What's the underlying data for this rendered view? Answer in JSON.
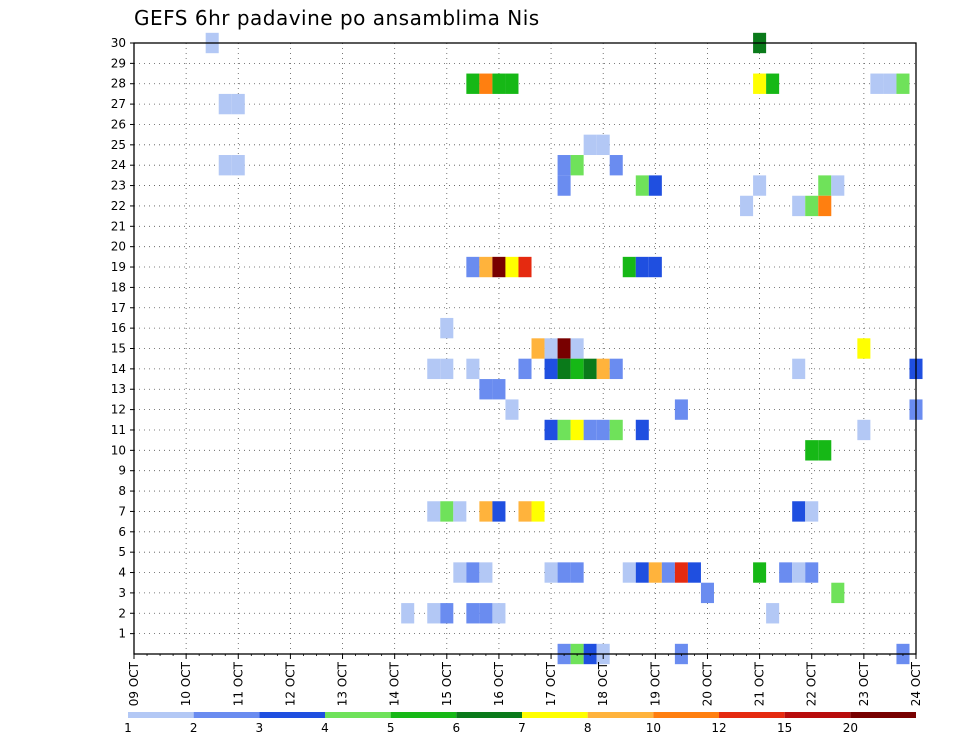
{
  "chart_data": {
    "type": "heatmap",
    "title": "GEFS 6hr padavine po ansamblima Nis",
    "xlabel": "",
    "ylabel": "",
    "x_range_days": [
      0,
      15
    ],
    "y_range": [
      0,
      30
    ],
    "y_ticks": [
      1,
      2,
      3,
      4,
      5,
      6,
      7,
      8,
      9,
      10,
      11,
      12,
      13,
      14,
      15,
      16,
      17,
      18,
      19,
      20,
      21,
      22,
      23,
      24,
      25,
      26,
      27,
      28,
      29,
      30
    ],
    "x_tick_labels": [
      "09 OCT",
      "10 OCT",
      "11 OCT",
      "12 OCT",
      "13 OCT",
      "14 OCT",
      "15 OCT",
      "16 OCT",
      "17 OCT",
      "18 OCT",
      "19 OCT",
      "20 OCT",
      "21 OCT",
      "22 OCT",
      "23 OCT",
      "24 OCT"
    ],
    "grid": true,
    "colorbar": {
      "labels": [
        "1",
        "2",
        "3",
        "4",
        "5",
        "6",
        "7",
        "8",
        "10",
        "12",
        "15",
        "20"
      ],
      "colors": [
        "#b3c8f5",
        "#6a8cf0",
        "#1f4fe0",
        "#6fe25a",
        "#16b816",
        "#0a7a1a",
        "#ffff00",
        "#ffb33c",
        "#ff7f10",
        "#e52a10",
        "#b80c0c",
        "#780000"
      ]
    },
    "cells": [
      {
        "member": 30,
        "day": 1.5,
        "c": 0
      },
      {
        "member": 30,
        "day": 12.0,
        "c": 5
      },
      {
        "member": 28,
        "day": 6.5,
        "c": 4
      },
      {
        "member": 28,
        "day": 6.75,
        "c": 8
      },
      {
        "member": 28,
        "day": 7.0,
        "c": 4
      },
      {
        "member": 28,
        "day": 7.25,
        "c": 4
      },
      {
        "member": 28,
        "day": 12.0,
        "c": 6
      },
      {
        "member": 28,
        "day": 12.25,
        "c": 4
      },
      {
        "member": 28,
        "day": 14.25,
        "c": 0
      },
      {
        "member": 28,
        "day": 14.5,
        "c": 0
      },
      {
        "member": 28,
        "day": 14.75,
        "c": 3
      },
      {
        "member": 27,
        "day": 1.75,
        "c": 0
      },
      {
        "member": 27,
        "day": 2.0,
        "c": 0
      },
      {
        "member": 25,
        "day": 8.75,
        "c": 0
      },
      {
        "member": 25,
        "day": 9.0,
        "c": 0
      },
      {
        "member": 24,
        "day": 1.75,
        "c": 0
      },
      {
        "member": 24,
        "day": 2.0,
        "c": 0
      },
      {
        "member": 24,
        "day": 8.25,
        "c": 1
      },
      {
        "member": 24,
        "day": 8.5,
        "c": 3
      },
      {
        "member": 24,
        "day": 9.25,
        "c": 1
      },
      {
        "member": 23,
        "day": 8.25,
        "c": 1
      },
      {
        "member": 23,
        "day": 9.75,
        "c": 3
      },
      {
        "member": 23,
        "day": 10.0,
        "c": 2
      },
      {
        "member": 23,
        "day": 12.0,
        "c": 0
      },
      {
        "member": 23,
        "day": 13.25,
        "c": 3
      },
      {
        "member": 23,
        "day": 13.5,
        "c": 0
      },
      {
        "member": 22,
        "day": 11.75,
        "c": 0
      },
      {
        "member": 22,
        "day": 12.75,
        "c": 0
      },
      {
        "member": 22,
        "day": 13.0,
        "c": 3
      },
      {
        "member": 22,
        "day": 13.25,
        "c": 8
      },
      {
        "member": 19,
        "day": 6.5,
        "c": 1
      },
      {
        "member": 19,
        "day": 6.75,
        "c": 7
      },
      {
        "member": 19,
        "day": 7.0,
        "c": 11
      },
      {
        "member": 19,
        "day": 7.25,
        "c": 6
      },
      {
        "member": 19,
        "day": 7.5,
        "c": 9
      },
      {
        "member": 19,
        "day": 9.5,
        "c": 4
      },
      {
        "member": 19,
        "day": 9.75,
        "c": 2
      },
      {
        "member": 19,
        "day": 10.0,
        "c": 2
      },
      {
        "member": 16,
        "day": 6.0,
        "c": 0
      },
      {
        "member": 15,
        "day": 7.75,
        "c": 7
      },
      {
        "member": 15,
        "day": 8.0,
        "c": 0
      },
      {
        "member": 15,
        "day": 8.25,
        "c": 11
      },
      {
        "member": 15,
        "day": 8.5,
        "c": 0
      },
      {
        "member": 15,
        "day": 14.0,
        "c": 6
      },
      {
        "member": 14,
        "day": 5.75,
        "c": 0
      },
      {
        "member": 14,
        "day": 6.0,
        "c": 0
      },
      {
        "member": 14,
        "day": 6.5,
        "c": 0
      },
      {
        "member": 14,
        "day": 7.5,
        "c": 1
      },
      {
        "member": 14,
        "day": 8.0,
        "c": 2
      },
      {
        "member": 14,
        "day": 8.25,
        "c": 5
      },
      {
        "member": 14,
        "day": 8.5,
        "c": 4
      },
      {
        "member": 14,
        "day": 8.75,
        "c": 5
      },
      {
        "member": 14,
        "day": 9.0,
        "c": 7
      },
      {
        "member": 14,
        "day": 9.25,
        "c": 1
      },
      {
        "member": 14,
        "day": 12.75,
        "c": 0
      },
      {
        "member": 14,
        "day": 15.0,
        "c": 2
      },
      {
        "member": 13,
        "day": 6.75,
        "c": 1
      },
      {
        "member": 13,
        "day": 7.0,
        "c": 1
      },
      {
        "member": 12,
        "day": 7.25,
        "c": 0
      },
      {
        "member": 12,
        "day": 10.5,
        "c": 1
      },
      {
        "member": 12,
        "day": 15.0,
        "c": 1
      },
      {
        "member": 11,
        "day": 8.0,
        "c": 2
      },
      {
        "member": 11,
        "day": 8.25,
        "c": 3
      },
      {
        "member": 11,
        "day": 8.5,
        "c": 6
      },
      {
        "member": 11,
        "day": 8.75,
        "c": 1
      },
      {
        "member": 11,
        "day": 9.0,
        "c": 1
      },
      {
        "member": 11,
        "day": 9.25,
        "c": 3
      },
      {
        "member": 11,
        "day": 9.75,
        "c": 2
      },
      {
        "member": 11,
        "day": 14.0,
        "c": 0
      },
      {
        "member": 10,
        "day": 13.0,
        "c": 4
      },
      {
        "member": 10,
        "day": 13.25,
        "c": 4
      },
      {
        "member": 7,
        "day": 5.75,
        "c": 0
      },
      {
        "member": 7,
        "day": 6.0,
        "c": 3
      },
      {
        "member": 7,
        "day": 6.25,
        "c": 0
      },
      {
        "member": 7,
        "day": 6.75,
        "c": 7
      },
      {
        "member": 7,
        "day": 7.0,
        "c": 2
      },
      {
        "member": 7,
        "day": 7.5,
        "c": 7
      },
      {
        "member": 7,
        "day": 7.75,
        "c": 6
      },
      {
        "member": 7,
        "day": 12.75,
        "c": 2
      },
      {
        "member": 7,
        "day": 13.0,
        "c": 0
      },
      {
        "member": 4,
        "day": 6.25,
        "c": 0
      },
      {
        "member": 4,
        "day": 6.5,
        "c": 1
      },
      {
        "member": 4,
        "day": 6.75,
        "c": 0
      },
      {
        "member": 4,
        "day": 8.0,
        "c": 0
      },
      {
        "member": 4,
        "day": 8.25,
        "c": 1
      },
      {
        "member": 4,
        "day": 8.5,
        "c": 1
      },
      {
        "member": 4,
        "day": 9.5,
        "c": 0
      },
      {
        "member": 4,
        "day": 9.75,
        "c": 2
      },
      {
        "member": 4,
        "day": 10.0,
        "c": 7
      },
      {
        "member": 4,
        "day": 10.25,
        "c": 1
      },
      {
        "member": 4,
        "day": 10.5,
        "c": 9
      },
      {
        "member": 4,
        "day": 10.75,
        "c": 2
      },
      {
        "member": 4,
        "day": 12.0,
        "c": 4
      },
      {
        "member": 4,
        "day": 12.5,
        "c": 1
      },
      {
        "member": 4,
        "day": 12.75,
        "c": 0
      },
      {
        "member": 4,
        "day": 13.0,
        "c": 1
      },
      {
        "member": 3,
        "day": 11.0,
        "c": 1
      },
      {
        "member": 3,
        "day": 13.5,
        "c": 3
      },
      {
        "member": 2,
        "day": 5.25,
        "c": 0
      },
      {
        "member": 2,
        "day": 5.75,
        "c": 0
      },
      {
        "member": 2,
        "day": 6.0,
        "c": 1
      },
      {
        "member": 2,
        "day": 6.5,
        "c": 1
      },
      {
        "member": 2,
        "day": 6.75,
        "c": 1
      },
      {
        "member": 2,
        "day": 7.0,
        "c": 0
      },
      {
        "member": 2,
        "day": 12.25,
        "c": 0
      },
      {
        "member": 0,
        "day": 8.25,
        "c": 1
      },
      {
        "member": 0,
        "day": 8.5,
        "c": 3
      },
      {
        "member": 0,
        "day": 8.75,
        "c": 2
      },
      {
        "member": 0,
        "day": 9.0,
        "c": 0
      },
      {
        "member": 0,
        "day": 10.5,
        "c": 1
      },
      {
        "member": 0,
        "day": 14.75,
        "c": 1
      }
    ]
  }
}
